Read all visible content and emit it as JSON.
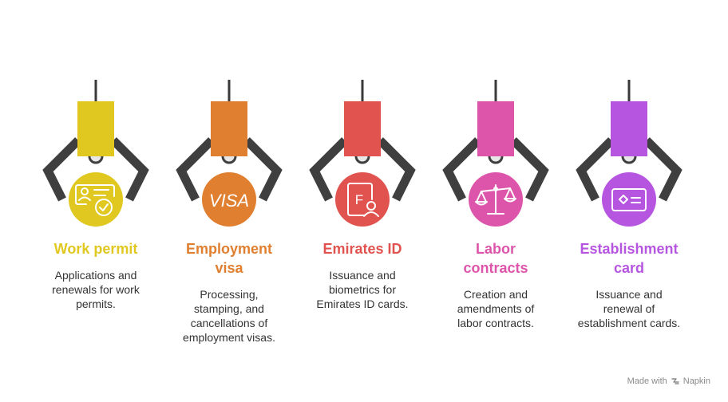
{
  "items": [
    {
      "title": "Work permit",
      "description": "Applications and\nrenewals for work\npermits.",
      "color": "#E0C820",
      "icon": "id-card-check-icon"
    },
    {
      "title": "Employment\nvisa",
      "description": "Processing,\nstamping, and\ncancellations of\nemployment visas.",
      "color": "#E07F30",
      "icon": "visa-icon",
      "icon_text": "VISA"
    },
    {
      "title": "Emirates ID",
      "description": "Issuance and\nbiometrics for\nEmirates ID cards.",
      "color": "#E0534F",
      "icon": "id-document-user-icon",
      "icon_text": "F"
    },
    {
      "title": "Labor\ncontracts",
      "description": "Creation and\namendments of\nlabor contracts.",
      "color": "#DD55AA",
      "icon": "scales-icon"
    },
    {
      "title": "Establishment\ncard",
      "description": "Issuance and\nrenewal of\nestablishment cards.",
      "color": "#B655E0",
      "icon": "card-icon"
    }
  ],
  "footer": {
    "made_with": "Made with",
    "brand": "Napkin"
  }
}
